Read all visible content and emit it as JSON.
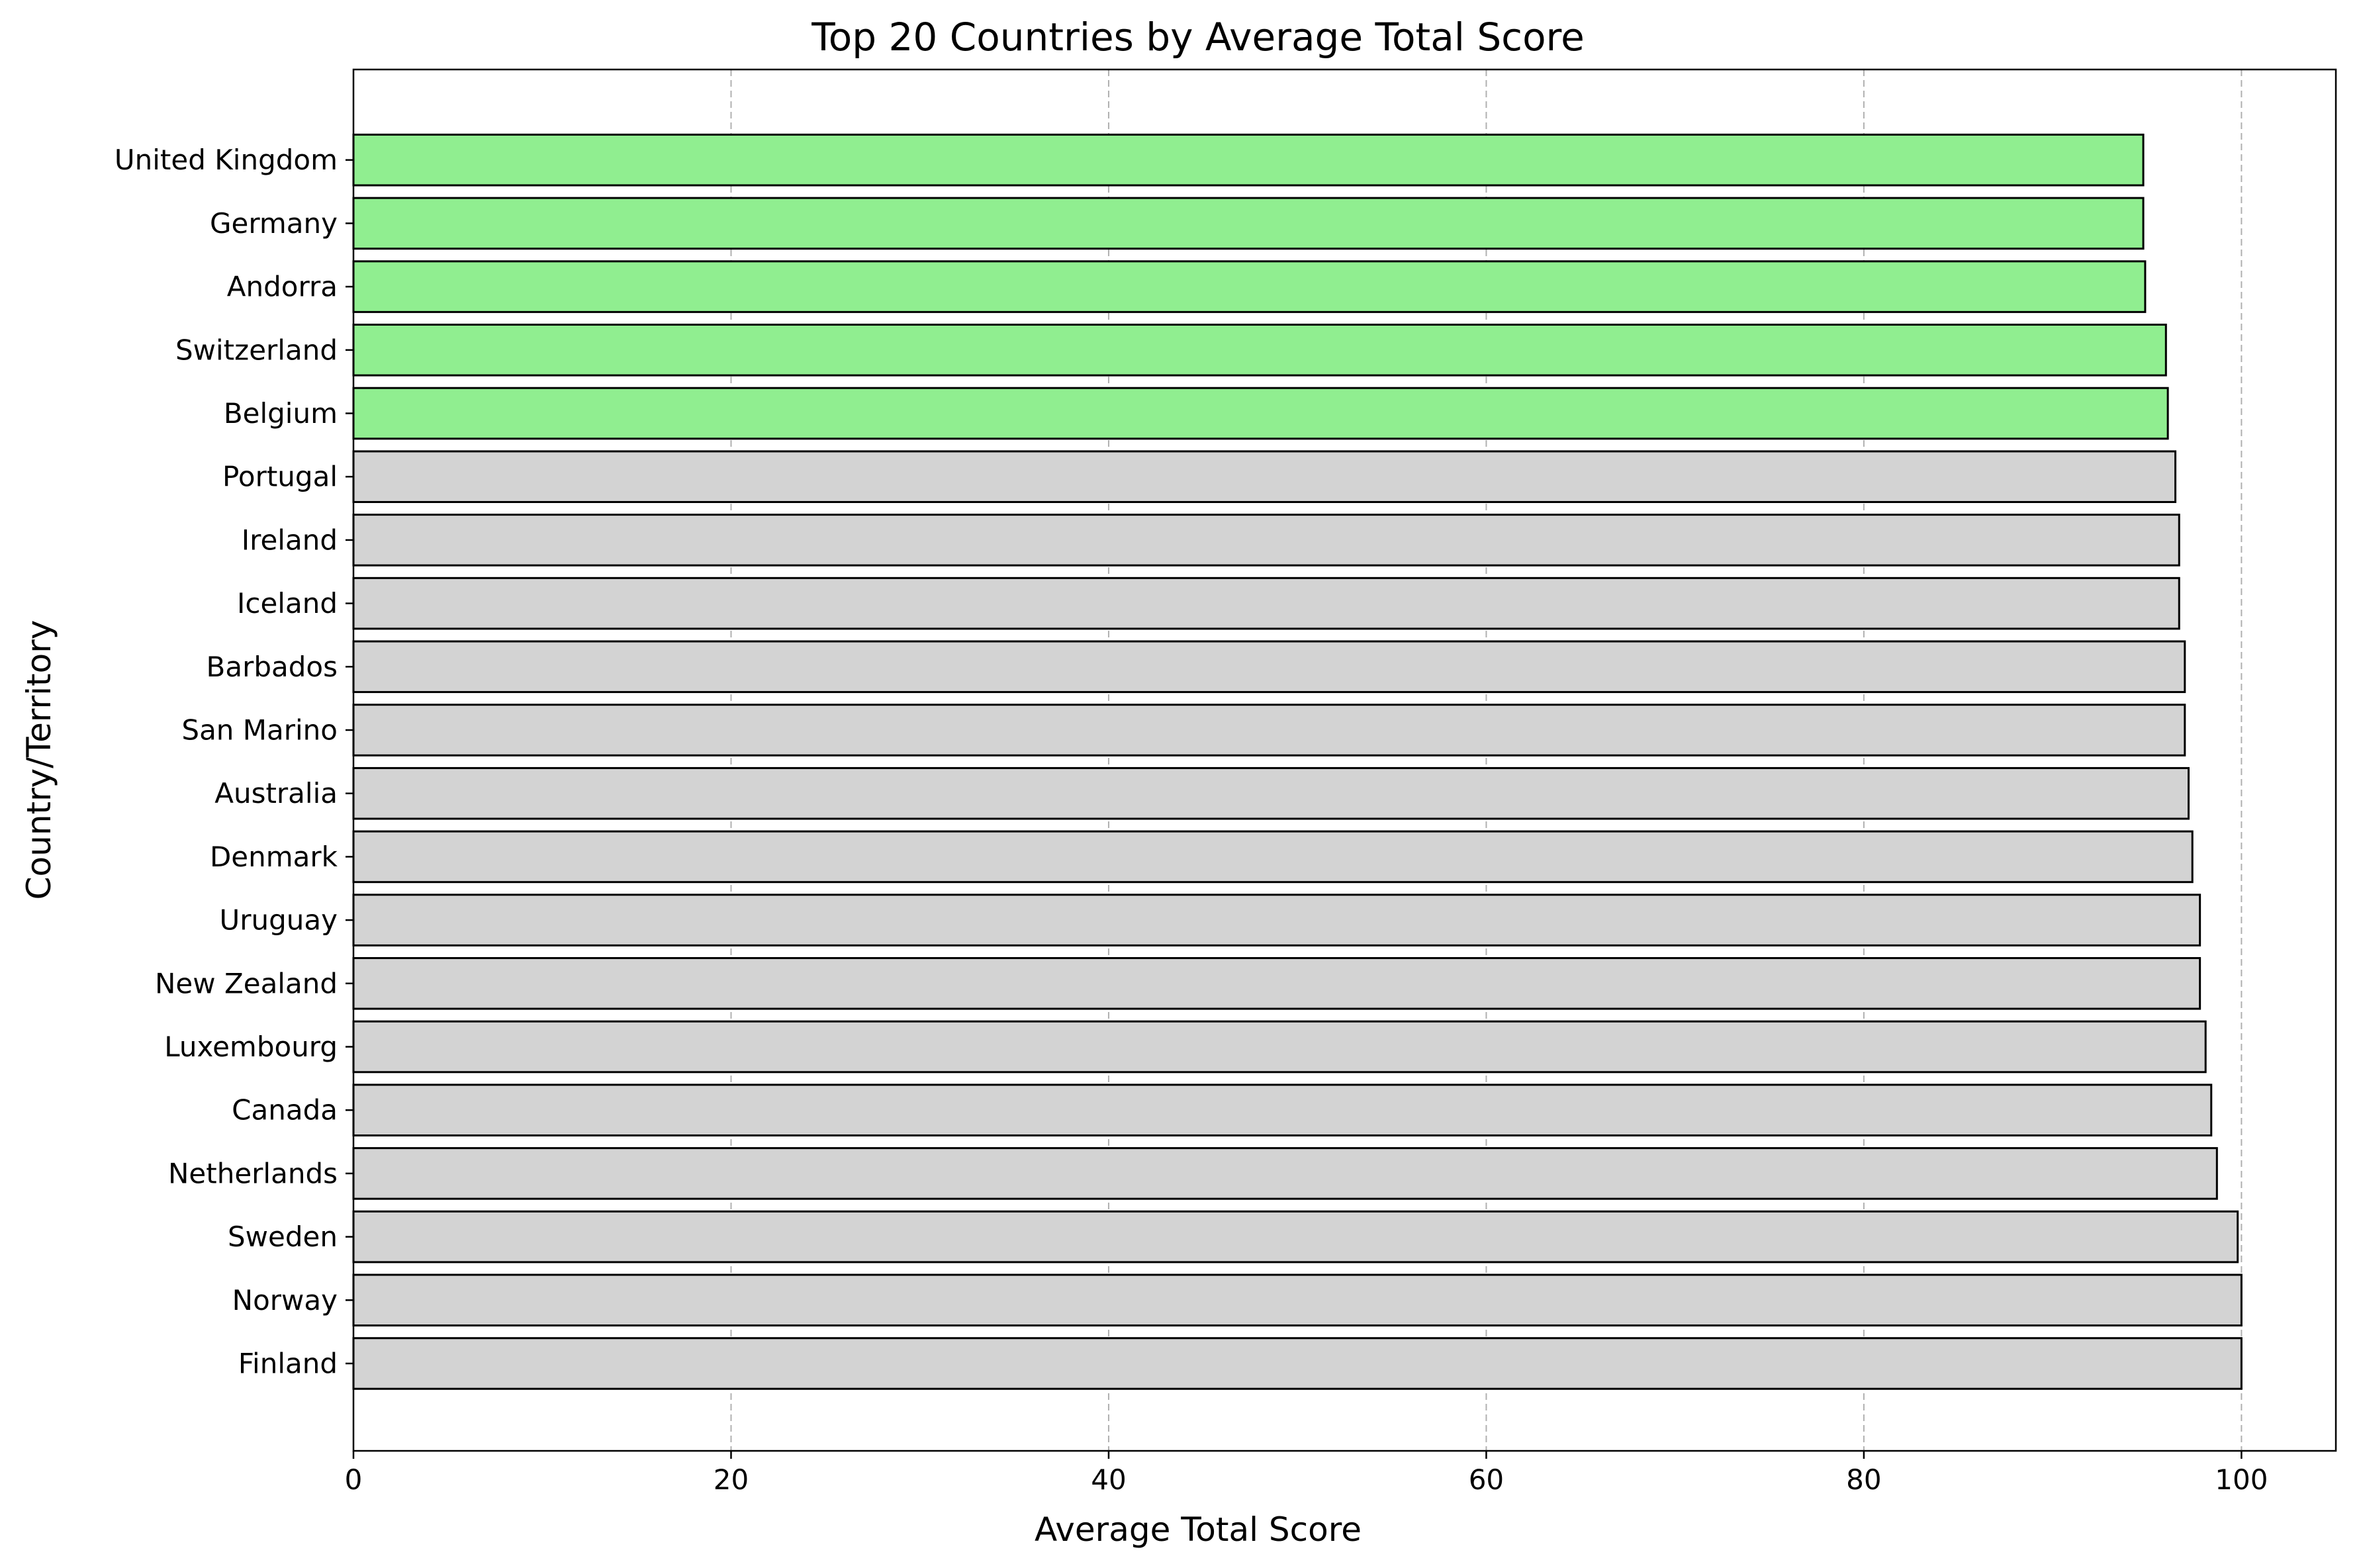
{
  "chart_data": {
    "type": "bar",
    "orientation": "horizontal",
    "title": "Top 20 Countries by Average Total Score",
    "xlabel": "Average Total Score",
    "ylabel": "Country/Territory",
    "xlim": [
      0,
      105
    ],
    "xticks": [
      0,
      20,
      40,
      60,
      80,
      100
    ],
    "grid": "x-dashed",
    "categories": [
      "Finland",
      "Norway",
      "Sweden",
      "Netherlands",
      "Canada",
      "Luxembourg",
      "New Zealand",
      "Uruguay",
      "Denmark",
      "Australia",
      "San Marino",
      "Barbados",
      "Iceland",
      "Ireland",
      "Portugal",
      "Belgium",
      "Switzerland",
      "Andorra",
      "Germany",
      "United Kingdom"
    ],
    "values": [
      100.0,
      100.0,
      99.8,
      98.7,
      98.4,
      98.1,
      97.8,
      97.8,
      97.4,
      97.2,
      97.0,
      97.0,
      96.7,
      96.7,
      96.5,
      96.1,
      96.0,
      94.9,
      94.8,
      94.8
    ],
    "colors": {
      "default": "#d3d3d3",
      "highlight": "#90ee90",
      "edge": "#000000",
      "grid": "#b0b0b0"
    },
    "highlighted": [
      "Belgium",
      "Switzerland",
      "Andorra",
      "Germany",
      "United Kingdom"
    ]
  }
}
